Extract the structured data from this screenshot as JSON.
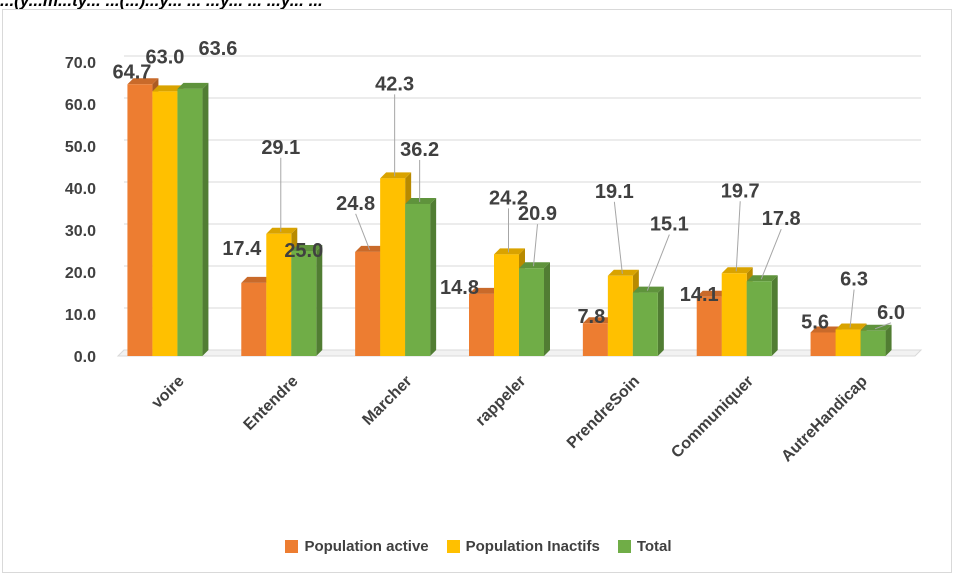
{
  "header_caption": "...(y...m...ty... ...(...)...y... ... ...y... ... ...y... ...",
  "chart_data": {
    "type": "bar",
    "categories": [
      "voire",
      "Entendre",
      "Marcher",
      "rappeler",
      "PrendreSoin",
      "Communiquer",
      "AutreHandicap"
    ],
    "series": [
      {
        "name": "Population active",
        "color": "#ed7d31",
        "values": [
          64.7,
          17.4,
          24.8,
          14.8,
          7.8,
          14.1,
          5.6
        ]
      },
      {
        "name": "Population Inactifs",
        "color": "#ffc000",
        "values": [
          63.0,
          29.1,
          42.3,
          24.2,
          19.1,
          19.7,
          6.3
        ]
      },
      {
        "name": "Total",
        "color": "#70ad47",
        "values": [
          63.6,
          25.0,
          36.2,
          20.9,
          15.1,
          17.8,
          6.0
        ]
      }
    ],
    "yticks": [
      "0.0",
      "10.0",
      "20.0",
      "30.0",
      "40.0",
      "50.0",
      "60.0",
      "70.0"
    ],
    "ylim": [
      0,
      70
    ],
    "grid": true,
    "legend_position": "bottom",
    "data_labels": true
  }
}
